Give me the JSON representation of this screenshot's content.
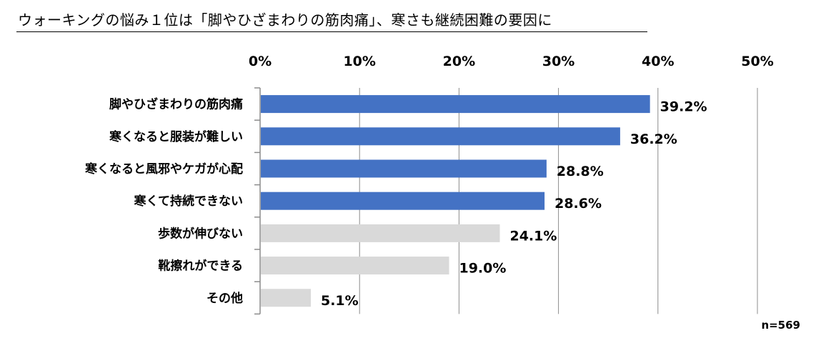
{
  "chart_data": {
    "type": "bar",
    "orientation": "horizontal",
    "title": "ウォーキングの悩み１位は「脚やひざまわりの筋肉痛」、寒さも継続困難の要因に",
    "categories": [
      "脚やひざまわりの筋肉痛",
      "寒くなると服装が難しい",
      "寒くなると風邪やケガが心配",
      "寒くて持続できない",
      "歩数が伸びない",
      "靴擦れができる",
      "その他"
    ],
    "values": [
      39.2,
      36.2,
      28.8,
      28.6,
      24.1,
      19.0,
      5.1
    ],
    "value_labels": [
      "39.2%",
      "36.2%",
      "28.8%",
      "28.6%",
      "24.1%",
      "19.0%",
      "5.1%"
    ],
    "highlighted": [
      true,
      true,
      true,
      true,
      false,
      false,
      false
    ],
    "xlim": [
      0,
      50
    ],
    "xticks": [
      "0%",
      "10%",
      "20%",
      "30%",
      "40%",
      "50%"
    ],
    "xtick_values": [
      0,
      10,
      20,
      30,
      40,
      50
    ],
    "xaxis_position": "top",
    "grid": true,
    "colors": {
      "highlight": "#4472C4",
      "other": "#D9D9D9",
      "grid": "#8C8C8C"
    },
    "note": "n=569"
  }
}
